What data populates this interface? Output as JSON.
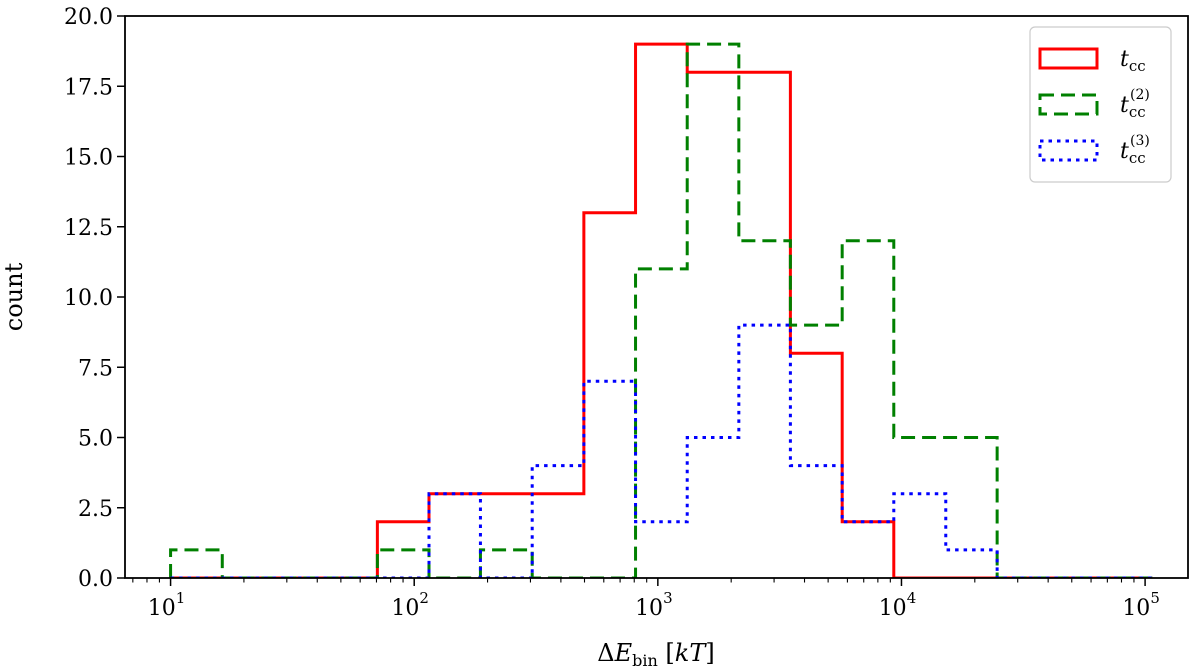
{
  "chart_data": {
    "type": "histogram",
    "xscale": "log",
    "xlim": [
      6.5,
      150000
    ],
    "ylim": [
      0,
      20
    ],
    "xlabel": "ΔE_bin [kT]",
    "ylabel": "count",
    "x_major_ticks": [
      10,
      100,
      1000,
      10000,
      100000
    ],
    "x_tick_labels": [
      {
        "base": "10",
        "exp": "1"
      },
      {
        "base": "10",
        "exp": "2"
      },
      {
        "base": "10",
        "exp": "3"
      },
      {
        "base": "10",
        "exp": "4"
      },
      {
        "base": "10",
        "exp": "5"
      }
    ],
    "y_ticks": [
      "0.0",
      "2.5",
      "5.0",
      "7.5",
      "10.0",
      "12.5",
      "15.0",
      "17.5",
      "20.0"
    ],
    "bin_edges": [
      10,
      16.3,
      26.6,
      43.3,
      70.6,
      115,
      187,
      305,
      497,
      810,
      1320,
      2150,
      3500,
      5710,
      9300,
      15200,
      24700,
      40300,
      65600,
      107000
    ],
    "series": [
      {
        "name": "t_cc",
        "legend": {
          "base": "t",
          "sub": "cc",
          "sup": ""
        },
        "color": "#ff0000",
        "linestyle": "solid",
        "counts": [
          0,
          0,
          0,
          0,
          2,
          3,
          3,
          3,
          13,
          19,
          18,
          18,
          8,
          2,
          0,
          0,
          0,
          0,
          0
        ]
      },
      {
        "name": "t_cc^(2)",
        "legend": {
          "base": "t",
          "sub": "cc",
          "sup": "(2)"
        },
        "color": "#008000",
        "linestyle": "dashed",
        "counts": [
          1,
          0,
          0,
          0,
          1,
          0,
          1,
          0,
          0,
          11,
          19,
          12,
          9,
          12,
          5,
          5,
          0,
          0,
          0
        ]
      },
      {
        "name": "t_cc^(3)",
        "legend": {
          "base": "t",
          "sub": "cc",
          "sup": "(3)"
        },
        "color": "#0000ff",
        "linestyle": "dotted",
        "counts": [
          0,
          0,
          0,
          0,
          0,
          3,
          0,
          4,
          7,
          2,
          5,
          9,
          4,
          2,
          3,
          1,
          0,
          0,
          0
        ]
      }
    ],
    "legend_position": "top-right",
    "grid": false
  }
}
